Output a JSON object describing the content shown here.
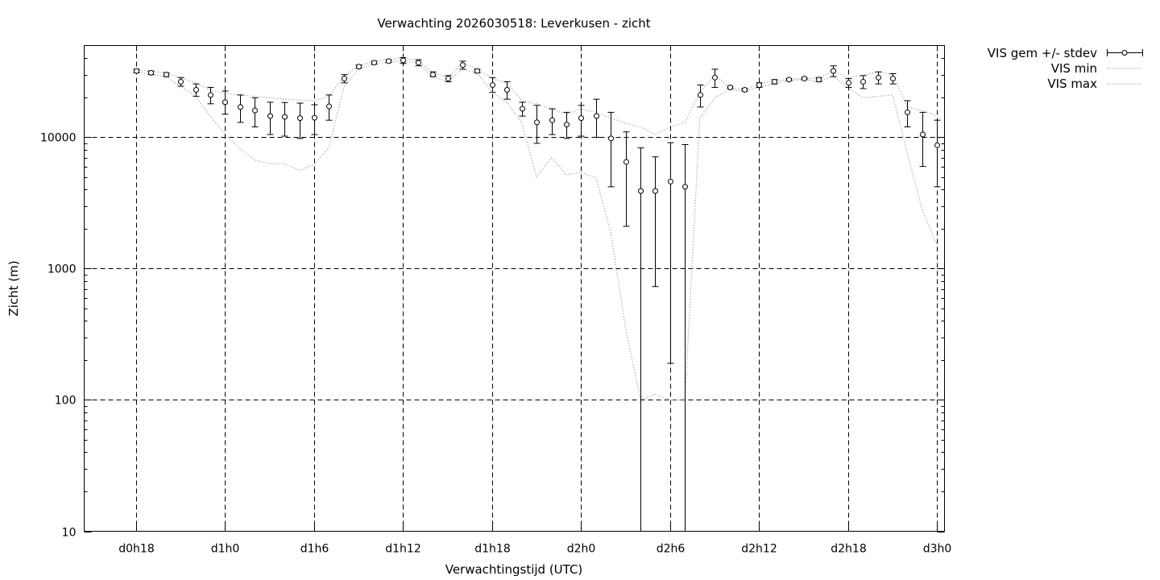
{
  "chart_data": {
    "type": "line",
    "title": "Verwachting 2026030518: Leverkusen - zicht",
    "xlabel": "Verwachtingstijd (UTC)",
    "ylabel": "Zicht (m)",
    "y_scale": "log",
    "ylim": [
      10,
      50000
    ],
    "y_ticks": [
      10,
      100,
      1000,
      10000
    ],
    "y_tick_labels": [
      "10",
      "100",
      "1000",
      "10000"
    ],
    "x_unit": "hours since d0h0",
    "xlim": [
      14.5,
      72.5
    ],
    "x_ticks": [
      18,
      24,
      30,
      36,
      42,
      48,
      54,
      60,
      66,
      72
    ],
    "x_tick_labels": [
      "d0h18",
      "d1h0",
      "d1h6",
      "d1h12",
      "d1h18",
      "d2h0",
      "d2h6",
      "d2h12",
      "d2h18",
      "d3h0"
    ],
    "grid": "dashed at major ticks",
    "legend_position": "outside top-right",
    "colors": {
      "mean": "#000000",
      "min": "#a0a0a0",
      "max": "#a0a0a0"
    },
    "series": [
      {
        "name": "VIS gem +/- stdev",
        "style": "points-errorbars",
        "x": [
          18,
          19,
          20,
          21,
          22,
          23,
          24,
          25,
          26,
          27,
          28,
          29,
          30,
          31,
          32,
          33,
          34,
          35,
          36,
          37,
          38,
          39,
          40,
          41,
          42,
          43,
          44,
          45,
          46,
          47,
          48,
          49,
          50,
          51,
          52,
          53,
          54,
          55,
          56,
          57,
          58,
          59,
          60,
          61,
          62,
          63,
          64,
          65,
          66,
          67,
          68,
          69,
          70,
          71,
          72
        ],
        "mean": [
          32000,
          31000,
          30000,
          26500,
          23000,
          21000,
          18500,
          17000,
          16000,
          14500,
          14300,
          14000,
          14100,
          17200,
          28000,
          34500,
          37000,
          38000,
          38500,
          37000,
          30000,
          28000,
          35500,
          32000,
          25000,
          23000,
          16500,
          13000,
          13500,
          12500,
          14000,
          14500,
          9800,
          6500,
          3900,
          3900,
          4600,
          4200,
          21000,
          28500,
          24000,
          23000,
          25000,
          26500,
          27500,
          28000,
          27500,
          32000,
          26000,
          26500,
          28500,
          28000,
          15500,
          10500,
          8700
        ],
        "low": [
          31000,
          30000,
          29000,
          24500,
          20500,
          18000,
          15000,
          13000,
          12000,
          10500,
          10200,
          9800,
          10500,
          13500,
          26000,
          33500,
          36000,
          37000,
          36500,
          35000,
          29000,
          26500,
          33000,
          31000,
          22000,
          19500,
          14500,
          9000,
          10500,
          9800,
          10200,
          10000,
          4200,
          2100,
          0,
          730,
          190,
          0,
          17000,
          24000,
          23500,
          22500,
          24000,
          25500,
          27000,
          27500,
          26500,
          29000,
          24000,
          23500,
          25500,
          25500,
          12000,
          6000,
          4200
        ],
        "high": [
          33000,
          32000,
          31000,
          28500,
          25500,
          24000,
          22500,
          21000,
          20000,
          18500,
          18400,
          18200,
          17700,
          21000,
          30000,
          35500,
          38000,
          39000,
          40500,
          39000,
          31500,
          29500,
          38000,
          33000,
          28500,
          26500,
          18500,
          17500,
          16500,
          15500,
          17500,
          19500,
          15500,
          11000,
          8300,
          7100,
          9100,
          8800,
          25000,
          33000,
          24500,
          23500,
          26000,
          27500,
          28000,
          28500,
          28500,
          35000,
          28000,
          29500,
          31500,
          30500,
          19000,
          15500,
          13500
        ]
      },
      {
        "name": "VIS min",
        "style": "dotted-line",
        "x": [
          18,
          20,
          22,
          23,
          24,
          25,
          26,
          27,
          28,
          29,
          30,
          31,
          32,
          33,
          34,
          35,
          36,
          37,
          38,
          39,
          40,
          41,
          42,
          43,
          44,
          45,
          46,
          47,
          48,
          49,
          50,
          51,
          52,
          53,
          54,
          55,
          56,
          57,
          58,
          59,
          60,
          61,
          62,
          63,
          64,
          65,
          66,
          67,
          68,
          69,
          70,
          71,
          72
        ],
        "values": [
          31500,
          29000,
          20500,
          14500,
          10500,
          8200,
          6700,
          6300,
          6300,
          5600,
          6200,
          8300,
          24000,
          33000,
          36000,
          37500,
          38000,
          37000,
          29000,
          26500,
          33000,
          31000,
          22000,
          18500,
          13000,
          5000,
          7000,
          5200,
          5400,
          4900,
          1900,
          350,
          100,
          110,
          100,
          100,
          14000,
          20000,
          23000,
          22500,
          24000,
          25500,
          27000,
          27500,
          26500,
          29000,
          24000,
          20000,
          20500,
          21000,
          7500,
          2800,
          1500
        ]
      },
      {
        "name": "VIS max",
        "style": "dotted-line",
        "x": [
          18,
          20,
          22,
          23,
          24,
          25,
          26,
          27,
          28,
          29,
          30,
          31,
          32,
          33,
          34,
          35,
          36,
          37,
          38,
          39,
          40,
          41,
          42,
          43,
          44,
          45,
          46,
          47,
          48,
          49,
          50,
          51,
          52,
          53,
          54,
          55,
          56,
          57,
          58,
          59,
          60,
          61,
          62,
          63,
          64,
          65,
          66,
          67,
          68,
          69,
          70,
          71,
          72
        ],
        "values": [
          32500,
          31000,
          26000,
          23000,
          21500,
          21000,
          20500,
          20000,
          19500,
          19200,
          19000,
          20500,
          29000,
          35000,
          38000,
          39000,
          40000,
          38500,
          31000,
          28500,
          37000,
          33000,
          28000,
          26000,
          19000,
          18000,
          16500,
          15000,
          16500,
          15500,
          14000,
          12800,
          12000,
          10500,
          12000,
          13000,
          22000,
          30000,
          24000,
          23000,
          25500,
          27000,
          27500,
          28000,
          28000,
          32000,
          28500,
          29500,
          31500,
          30000,
          17000,
          16000,
          14500
        ]
      }
    ]
  }
}
